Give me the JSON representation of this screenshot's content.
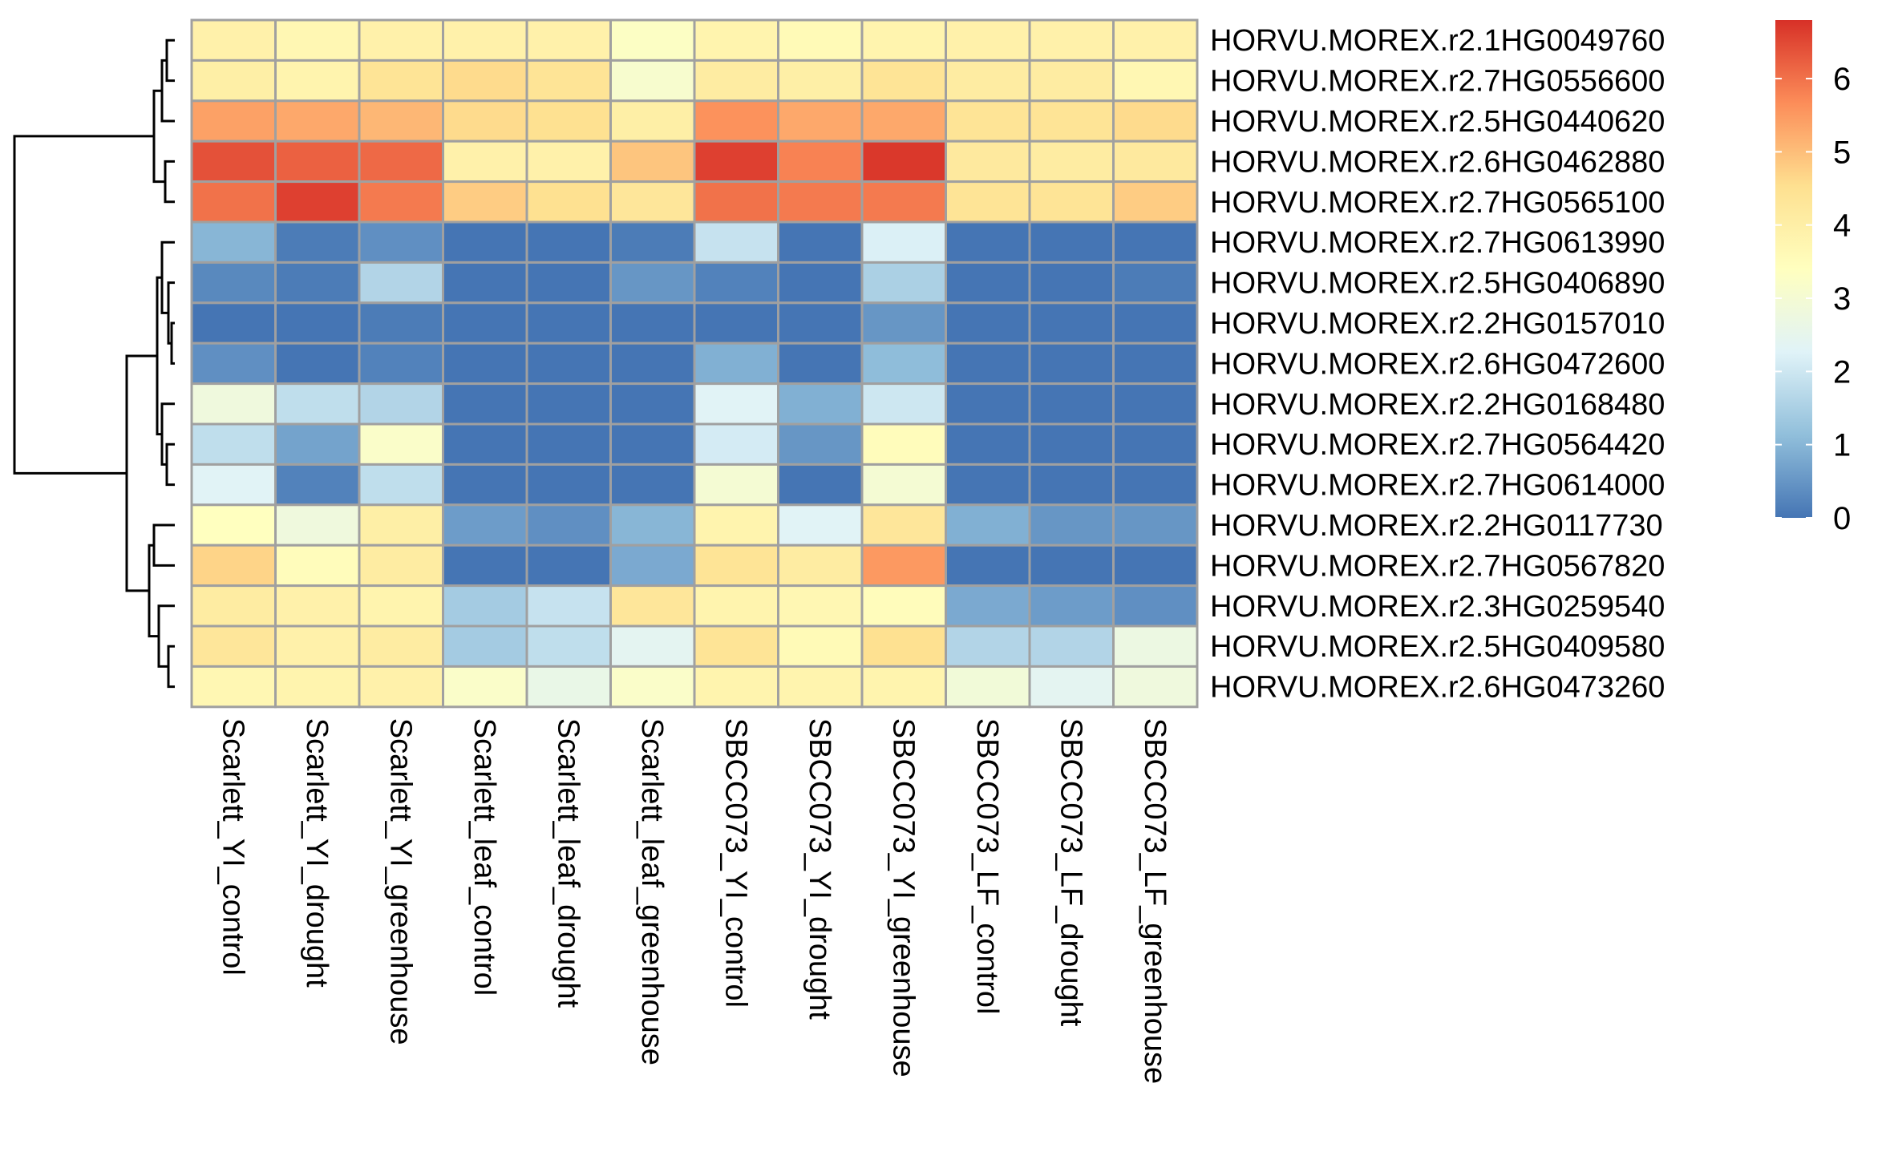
{
  "chart_data": {
    "type": "heatmap",
    "rows": [
      "HORVU.MOREX.r2.1HG0049760",
      "HORVU.MOREX.r2.7HG0556600",
      "HORVU.MOREX.r2.5HG0440620",
      "HORVU.MOREX.r2.6HG0462880",
      "HORVU.MOREX.r2.7HG0565100",
      "HORVU.MOREX.r2.7HG0613990",
      "HORVU.MOREX.r2.5HG0406890",
      "HORVU.MOREX.r2.2HG0157010",
      "HORVU.MOREX.r2.6HG0472600",
      "HORVU.MOREX.r2.2HG0168480",
      "HORVU.MOREX.r2.7HG0564420",
      "HORVU.MOREX.r2.7HG0614000",
      "HORVU.MOREX.r2.2HG0117730",
      "HORVU.MOREX.r2.7HG0567820",
      "HORVU.MOREX.r2.3HG0259540",
      "HORVU.MOREX.r2.5HG0409580",
      "HORVU.MOREX.r2.6HG0473260"
    ],
    "columns": [
      "Scarlett_YI_control",
      "Scarlett_YI_drought",
      "Scarlett_YI_greenhouse",
      "Scarlett_leaf_control",
      "Scarlett_leaf_drought",
      "Scarlett_leaf_greenhouse",
      "SBCC073_YI_control",
      "SBCC073_YI_drought",
      "SBCC073_YI_greenhouse",
      "SBCC073_LF_control",
      "SBCC073_LF_drought",
      "SBCC073_LF_greenhouse"
    ],
    "values": [
      [
        3.9,
        3.7,
        3.9,
        3.9,
        3.9,
        3.3,
        3.8,
        3.6,
        3.8,
        3.9,
        3.9,
        3.9
      ],
      [
        4.0,
        3.8,
        4.4,
        4.6,
        4.4,
        3.1,
        4.1,
        4.0,
        4.4,
        4.1,
        4.1,
        3.7
      ],
      [
        5.4,
        5.3,
        5.1,
        4.6,
        4.5,
        4.0,
        5.6,
        5.3,
        5.3,
        4.4,
        4.4,
        4.6
      ],
      [
        6.4,
        6.2,
        6.1,
        3.9,
        3.9,
        4.9,
        6.6,
        5.8,
        6.7,
        4.2,
        4.1,
        4.2
      ],
      [
        6.0,
        6.6,
        5.9,
        4.8,
        4.5,
        4.3,
        6.0,
        5.9,
        5.9,
        4.4,
        4.4,
        4.8
      ],
      [
        1.0,
        0.1,
        0.4,
        0.0,
        0.0,
        0.1,
        1.9,
        0.0,
        2.2,
        0.0,
        0.0,
        0.0
      ],
      [
        0.3,
        0.1,
        1.6,
        0.0,
        0.0,
        0.5,
        0.2,
        0.0,
        1.5,
        0.0,
        0.0,
        0.1
      ],
      [
        0.0,
        0.0,
        0.1,
        0.0,
        0.0,
        0.0,
        0.0,
        0.0,
        0.5,
        0.0,
        0.0,
        0.0
      ],
      [
        0.4,
        0.0,
        0.2,
        0.0,
        0.0,
        0.0,
        0.9,
        0.0,
        1.1,
        0.0,
        0.0,
        0.0
      ],
      [
        2.8,
        1.8,
        1.6,
        0.0,
        0.0,
        0.0,
        2.3,
        0.9,
        2.0,
        0.0,
        0.0,
        0.0
      ],
      [
        1.8,
        0.7,
        3.2,
        0.0,
        0.0,
        0.0,
        2.1,
        0.5,
        3.5,
        0.0,
        0.0,
        0.0
      ],
      [
        2.3,
        0.2,
        1.8,
        0.0,
        0.0,
        0.0,
        3.0,
        0.0,
        3.0,
        0.0,
        0.0,
        0.0
      ],
      [
        3.4,
        2.8,
        4.0,
        0.6,
        0.4,
        1.0,
        3.8,
        2.3,
        4.3,
        0.9,
        0.5,
        0.5
      ],
      [
        4.7,
        3.5,
        4.1,
        0.0,
        0.0,
        0.8,
        4.4,
        4.1,
        5.5,
        0.0,
        0.0,
        0.0
      ],
      [
        4.1,
        3.9,
        3.8,
        1.4,
        1.9,
        4.3,
        3.8,
        3.7,
        3.5,
        0.8,
        0.6,
        0.4
      ],
      [
        4.3,
        3.9,
        4.1,
        1.4,
        1.8,
        2.4,
        4.4,
        3.6,
        4.5,
        1.6,
        1.6,
        2.7
      ],
      [
        3.7,
        3.8,
        3.9,
        3.2,
        2.6,
        3.2,
        3.8,
        3.8,
        3.8,
        2.9,
        2.4,
        2.8
      ]
    ],
    "scale": {
      "min": 0,
      "max": 6.8,
      "ticks": [
        0,
        1,
        2,
        3,
        4,
        5,
        6
      ],
      "colors": [
        "#4575b4",
        "#91bfdb",
        "#e0f3f8",
        "#ffffbf",
        "#fee090",
        "#fc8d59",
        "#d73027"
      ]
    },
    "grid": true,
    "legend": "right",
    "row_dendrogram": true,
    "column_dendrogram": false
  }
}
